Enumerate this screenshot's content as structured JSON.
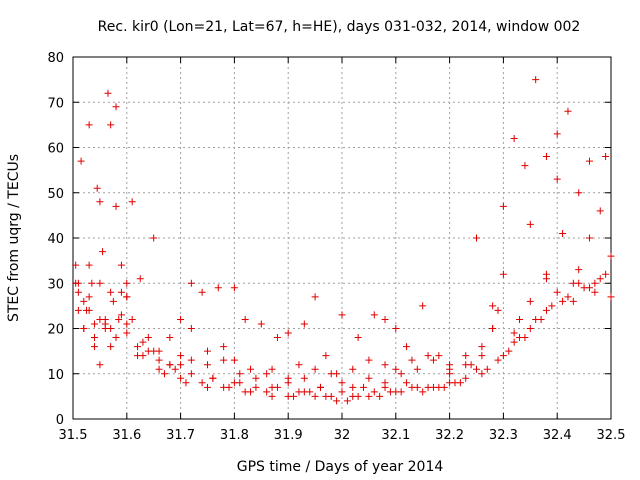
{
  "chart_data": {
    "type": "scatter",
    "title": "Rec. kir0 (Lon=21, Lat=67, h=HE), days 031-032, 2014, window 002",
    "xlabel": "GPS time / Days of year 2014",
    "ylabel": "STEC from uqrg / TECUs",
    "xlim": [
      31.5,
      32.5
    ],
    "ylim": [
      0,
      80
    ],
    "xticks": [
      31.5,
      31.6,
      31.7,
      31.8,
      31.9,
      32.0,
      32.1,
      32.2,
      32.3,
      32.4,
      32.5
    ],
    "xtick_labels": [
      "31.5",
      "31.6",
      "31.7",
      "31.8",
      "31.9",
      "32",
      "32.1",
      "32.2",
      "32.3",
      "32.4",
      "32.5"
    ],
    "yticks": [
      0,
      10,
      20,
      30,
      40,
      50,
      60,
      70,
      80
    ],
    "ytick_labels": [
      "0",
      "10",
      "20",
      "30",
      "40",
      "50",
      "60",
      "70",
      "80"
    ],
    "grid": true,
    "marker": "+",
    "color": "#e00000",
    "series": [
      {
        "name": "STEC",
        "x": [
          31.505,
          31.51,
          31.515,
          31.52,
          31.525,
          31.53,
          31.535,
          31.54,
          31.545,
          31.55,
          31.555,
          31.56,
          31.565,
          31.57,
          31.575,
          31.58,
          31.585,
          31.59,
          31.6,
          31.61,
          31.625,
          31.65,
          31.68,
          31.7,
          31.72,
          31.74,
          31.77,
          31.8,
          31.82,
          31.85,
          31.88,
          31.9,
          31.93,
          31.95,
          31.97,
          32.0,
          32.03,
          32.06,
          32.08,
          32.1,
          32.12,
          32.15,
          32.18,
          32.2,
          32.25,
          32.28,
          32.3,
          32.32,
          32.34,
          32.36,
          32.38,
          32.4,
          32.42,
          32.44,
          32.46,
          32.48,
          32.5,
          31.505,
          31.51,
          31.52,
          31.53,
          31.54,
          31.55,
          31.56,
          31.57,
          31.58,
          31.59,
          31.6,
          31.61,
          31.62,
          31.64,
          31.66,
          31.68,
          31.7,
          31.72,
          31.75,
          31.78,
          31.8,
          31.83,
          31.86,
          31.9,
          31.92,
          31.95,
          31.98,
          32.0,
          32.02,
          32.05,
          32.08,
          32.1,
          32.13,
          32.16,
          32.2,
          32.23,
          32.26,
          32.28,
          32.3,
          32.33,
          32.35,
          32.38,
          32.4,
          32.43,
          32.46,
          32.49,
          31.51,
          31.53,
          31.55,
          31.57,
          31.6,
          31.63,
          31.66,
          31.69,
          31.72,
          31.75,
          31.78,
          31.81,
          31.84,
          31.87,
          31.9,
          31.93,
          31.96,
          31.99,
          32.02,
          32.05,
          32.08,
          32.11,
          32.14,
          32.17,
          32.2,
          32.23,
          32.26,
          32.29,
          32.32,
          32.35,
          32.38,
          32.41,
          32.44,
          32.47,
          32.5,
          31.52,
          31.56,
          31.6,
          31.64,
          31.68,
          31.72,
          31.76,
          31.8,
          31.84,
          31.88,
          31.92,
          31.96,
          32.0,
          32.04,
          32.08,
          32.12,
          32.16,
          32.2,
          32.24,
          32.28,
          32.32,
          32.36,
          32.4,
          32.44,
          32.48,
          31.54,
          31.58,
          31.62,
          31.66,
          31.7,
          31.74,
          31.78,
          31.82,
          31.86,
          31.9,
          31.94,
          31.98,
          32.02,
          32.06,
          32.1,
          32.14,
          32.18,
          32.22,
          32.26,
          32.3,
          32.34,
          32.38,
          32.42,
          32.46,
          31.55,
          31.57,
          31.6,
          31.63,
          31.67,
          31.71,
          31.75,
          31.79,
          31.83,
          31.87,
          31.91,
          31.95,
          31.99,
          32.03,
          32.07,
          32.11,
          32.15,
          32.19,
          32.23,
          32.27,
          32.31,
          32.35,
          32.39,
          32.43,
          32.47,
          31.53,
          31.59,
          31.65,
          31.7,
          31.76,
          31.81,
          31.87,
          31.93,
          31.97,
          32.01,
          32.05,
          32.09,
          32.13,
          32.17,
          32.21,
          32.25,
          32.29,
          32.33,
          32.37,
          32.41,
          32.45,
          32.49
        ],
        "y": [
          34,
          30,
          57,
          26,
          24,
          65,
          30,
          21,
          51,
          48,
          37,
          21,
          72,
          65,
          26,
          69,
          22,
          34,
          30,
          48,
          31,
          40,
          18,
          22,
          30,
          28,
          29,
          29,
          22,
          21,
          18,
          19,
          21,
          27,
          14,
          23,
          18,
          23,
          22,
          20,
          16,
          25,
          14,
          12,
          40,
          25,
          47,
          62,
          56,
          75,
          58,
          63,
          68,
          50,
          57,
          46,
          36,
          30,
          28,
          20,
          24,
          18,
          22,
          20,
          28,
          47,
          28,
          27,
          22,
          16,
          15,
          13,
          12,
          14,
          20,
          12,
          13,
          13,
          11,
          10,
          9,
          12,
          11,
          10,
          8,
          11,
          13,
          12,
          11,
          13,
          14,
          11,
          12,
          14,
          20,
          32,
          22,
          43,
          31,
          53,
          30,
          40,
          58,
          24,
          34,
          30,
          20,
          27,
          17,
          15,
          11,
          13,
          15,
          16,
          10,
          9,
          11,
          8,
          9,
          7,
          10,
          7,
          9,
          8,
          10,
          11,
          13,
          10,
          14,
          16,
          24,
          19,
          26,
          32,
          41,
          33,
          30,
          27,
          20,
          22,
          21,
          18,
          12,
          10,
          9,
          8,
          7,
          7,
          6,
          7,
          6,
          7,
          7,
          8,
          7,
          8,
          12,
          20,
          17,
          22,
          28,
          30,
          31,
          16,
          18,
          14,
          11,
          9,
          8,
          7,
          6,
          6,
          5,
          6,
          5,
          5,
          6,
          6,
          7,
          7,
          8,
          10,
          14,
          18,
          24,
          27,
          29,
          12,
          16,
          19,
          14,
          10,
          8,
          7,
          7,
          6,
          5,
          5,
          5,
          4,
          5,
          5,
          6,
          6,
          7,
          9,
          11,
          15,
          20,
          25,
          26,
          28,
          27,
          23,
          15,
          12,
          9,
          8,
          7,
          6,
          5,
          4,
          5,
          6,
          7,
          7,
          8,
          11,
          13,
          18,
          22,
          26,
          29,
          32
        ]
      }
    ]
  }
}
